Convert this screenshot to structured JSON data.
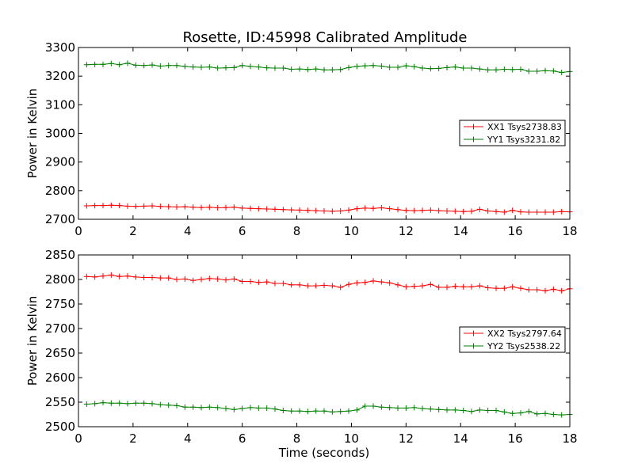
{
  "title": "Rosette, ID:45998 Calibrated Amplitude",
  "chart_data": [
    {
      "type": "line",
      "xlabel": "",
      "ylabel": "Power in Kelvin",
      "xlim": [
        0,
        18
      ],
      "ylim": [
        2700,
        3300
      ],
      "xticks": [
        0,
        2,
        4,
        6,
        8,
        10,
        12,
        14,
        16,
        18
      ],
      "yticks": [
        2700,
        2800,
        2900,
        3000,
        3100,
        3200,
        3300
      ],
      "grid": false,
      "legend_position": "center-right",
      "x": [
        0.3,
        0.6,
        0.9,
        1.2,
        1.5,
        1.8,
        2.1,
        2.4,
        2.7,
        3.0,
        3.3,
        3.6,
        3.9,
        4.2,
        4.5,
        4.8,
        5.1,
        5.4,
        5.7,
        6.0,
        6.3,
        6.6,
        6.9,
        7.2,
        7.5,
        7.8,
        8.1,
        8.4,
        8.7,
        9.0,
        9.3,
        9.6,
        9.9,
        10.2,
        10.5,
        10.8,
        11.1,
        11.4,
        11.7,
        12.0,
        12.3,
        12.6,
        12.9,
        13.2,
        13.5,
        13.8,
        14.1,
        14.4,
        14.7,
        15.0,
        15.3,
        15.6,
        15.9,
        16.2,
        16.5,
        16.8,
        17.1,
        17.4,
        17.7,
        18.0
      ],
      "series": [
        {
          "name": "XX1 Tsys2738.83",
          "color": "#ff0000",
          "values": [
            2747,
            2748,
            2748,
            2749,
            2748,
            2746,
            2745,
            2746,
            2747,
            2745,
            2744,
            2743,
            2744,
            2742,
            2741,
            2742,
            2740,
            2741,
            2742,
            2739,
            2738,
            2737,
            2736,
            2735,
            2734,
            2733,
            2732,
            2731,
            2730,
            2729,
            2728,
            2729,
            2732,
            2737,
            2739,
            2738,
            2740,
            2737,
            2734,
            2731,
            2730,
            2731,
            2732,
            2730,
            2729,
            2728,
            2727,
            2728,
            2735,
            2729,
            2727,
            2725,
            2731,
            2726,
            2725,
            2725,
            2725,
            2725,
            2727,
            2726
          ]
        },
        {
          "name": "YY1 Tsys3231.82",
          "color": "#008000",
          "values": [
            3240,
            3241,
            3241,
            3244,
            3240,
            3245,
            3238,
            3237,
            3239,
            3235,
            3237,
            3237,
            3234,
            3232,
            3231,
            3232,
            3228,
            3229,
            3230,
            3237,
            3234,
            3232,
            3229,
            3228,
            3228,
            3224,
            3225,
            3223,
            3225,
            3222,
            3222,
            3223,
            3230,
            3234,
            3236,
            3237,
            3235,
            3231,
            3231,
            3236,
            3233,
            3228,
            3226,
            3227,
            3230,
            3232,
            3228,
            3228,
            3225,
            3222,
            3222,
            3224,
            3223,
            3224,
            3217,
            3217,
            3219,
            3218,
            3213,
            3216
          ]
        }
      ]
    },
    {
      "type": "line",
      "xlabel": "Time (seconds)",
      "ylabel": "Power in Kelvin",
      "xlim": [
        0,
        18
      ],
      "ylim": [
        2500,
        2850
      ],
      "xticks": [
        0,
        2,
        4,
        6,
        8,
        10,
        12,
        14,
        16,
        18
      ],
      "yticks": [
        2500,
        2550,
        2600,
        2650,
        2700,
        2750,
        2800,
        2850
      ],
      "grid": false,
      "legend_position": "center-right",
      "x": [
        0.3,
        0.6,
        0.9,
        1.2,
        1.5,
        1.8,
        2.1,
        2.4,
        2.7,
        3.0,
        3.3,
        3.6,
        3.9,
        4.2,
        4.5,
        4.8,
        5.1,
        5.4,
        5.7,
        6.0,
        6.3,
        6.6,
        6.9,
        7.2,
        7.5,
        7.8,
        8.1,
        8.4,
        8.7,
        9.0,
        9.3,
        9.6,
        9.9,
        10.2,
        10.5,
        10.8,
        11.1,
        11.4,
        11.7,
        12.0,
        12.3,
        12.6,
        12.9,
        13.2,
        13.5,
        13.8,
        14.1,
        14.4,
        14.7,
        15.0,
        15.3,
        15.6,
        15.9,
        16.2,
        16.5,
        16.8,
        17.1,
        17.4,
        17.7,
        18.0
      ],
      "series": [
        {
          "name": "XX2 Tsys2797.64",
          "color": "#ff0000",
          "values": [
            2806,
            2805,
            2807,
            2809,
            2806,
            2807,
            2805,
            2804,
            2804,
            2803,
            2803,
            2800,
            2801,
            2798,
            2800,
            2802,
            2801,
            2799,
            2801,
            2796,
            2796,
            2794,
            2795,
            2792,
            2792,
            2789,
            2789,
            2787,
            2787,
            2788,
            2787,
            2784,
            2790,
            2793,
            2794,
            2797,
            2795,
            2793,
            2789,
            2785,
            2786,
            2787,
            2790,
            2784,
            2784,
            2786,
            2785,
            2785,
            2787,
            2783,
            2782,
            2782,
            2785,
            2782,
            2779,
            2779,
            2777,
            2780,
            2777,
            2781
          ]
        },
        {
          "name": "YY2 Tsys2538.22",
          "color": "#008000",
          "values": [
            2546,
            2547,
            2549,
            2548,
            2548,
            2547,
            2548,
            2548,
            2547,
            2545,
            2544,
            2543,
            2540,
            2540,
            2539,
            2540,
            2539,
            2537,
            2535,
            2537,
            2539,
            2538,
            2538,
            2536,
            2533,
            2532,
            2532,
            2531,
            2532,
            2532,
            2530,
            2531,
            2532,
            2534,
            2542,
            2542,
            2540,
            2539,
            2538,
            2538,
            2539,
            2537,
            2536,
            2535,
            2534,
            2534,
            2533,
            2531,
            2534,
            2533,
            2533,
            2530,
            2527,
            2528,
            2531,
            2526,
            2527,
            2525,
            2524,
            2525
          ]
        }
      ]
    }
  ]
}
